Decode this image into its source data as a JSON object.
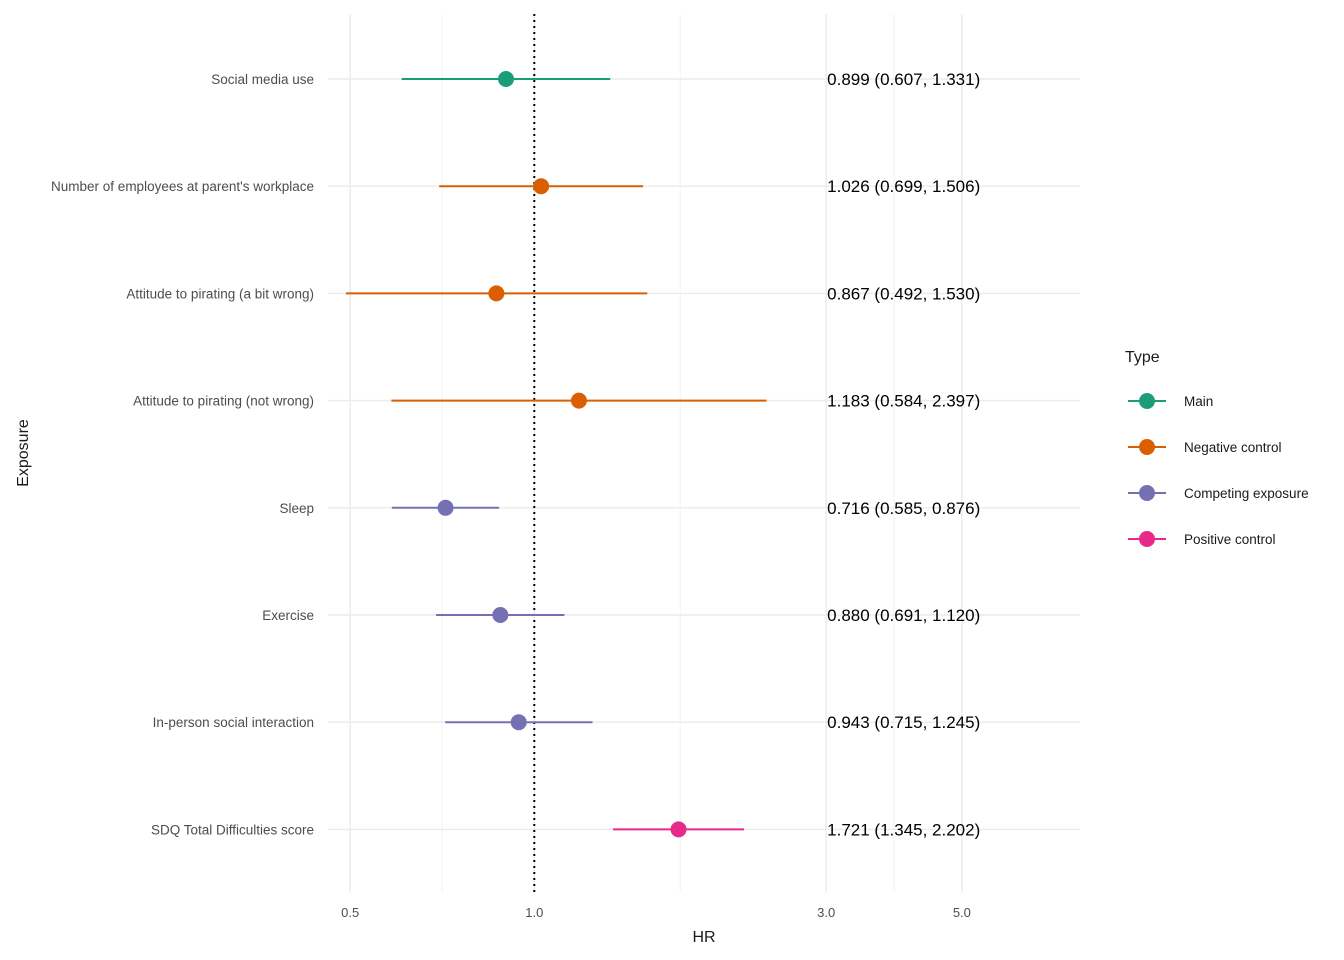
{
  "chart_data": {
    "type": "forest",
    "xlabel": "HR",
    "ylabel": "Exposure",
    "x_scale": "log",
    "xlim": [
      0.46,
      7.8
    ],
    "x_ticks": [
      0.5,
      1.0,
      3.0,
      5.0
    ],
    "x_tick_labels": [
      "0.5",
      "1.0",
      "3.0",
      "5.0"
    ],
    "reference_line": 1.0,
    "legend": {
      "title": "Type",
      "position": "right",
      "entries": [
        {
          "label": "Main",
          "color": "#1b9e77"
        },
        {
          "label": "Negative control",
          "color": "#d95f02"
        },
        {
          "label": "Competing exposure",
          "color": "#7570b3"
        },
        {
          "label": "Positive control",
          "color": "#e7298a"
        }
      ]
    },
    "rows": [
      {
        "exposure": "Social media use",
        "type": "Main",
        "hr": 0.899,
        "lower": 0.607,
        "upper": 1.331,
        "label": "0.899 (0.607, 1.331)"
      },
      {
        "exposure": "Number of employees at parent's workplace",
        "type": "Negative control",
        "hr": 1.026,
        "lower": 0.699,
        "upper": 1.506,
        "label": "1.026 (0.699, 1.506)"
      },
      {
        "exposure": "Attitude to pirating (a bit wrong)",
        "type": "Negative control",
        "hr": 0.867,
        "lower": 0.492,
        "upper": 1.53,
        "label": "0.867 (0.492, 1.530)"
      },
      {
        "exposure": "Attitude to pirating (not wrong)",
        "type": "Negative control",
        "hr": 1.183,
        "lower": 0.584,
        "upper": 2.397,
        "label": "1.183 (0.584, 2.397)"
      },
      {
        "exposure": "Sleep",
        "type": "Competing exposure",
        "hr": 0.716,
        "lower": 0.585,
        "upper": 0.876,
        "label": "0.716 (0.585, 0.876)"
      },
      {
        "exposure": "Exercise",
        "type": "Competing exposure",
        "hr": 0.88,
        "lower": 0.691,
        "upper": 1.12,
        "label": "0.880 (0.691, 1.120)"
      },
      {
        "exposure": "In-person social interaction",
        "type": "Competing exposure",
        "hr": 0.943,
        "lower": 0.715,
        "upper": 1.245,
        "label": "0.943 (0.715, 1.245)"
      },
      {
        "exposure": "SDQ Total Difficulties score",
        "type": "Positive control",
        "hr": 1.721,
        "lower": 1.345,
        "upper": 2.202,
        "label": "1.721 (1.345, 2.202)"
      }
    ]
  }
}
